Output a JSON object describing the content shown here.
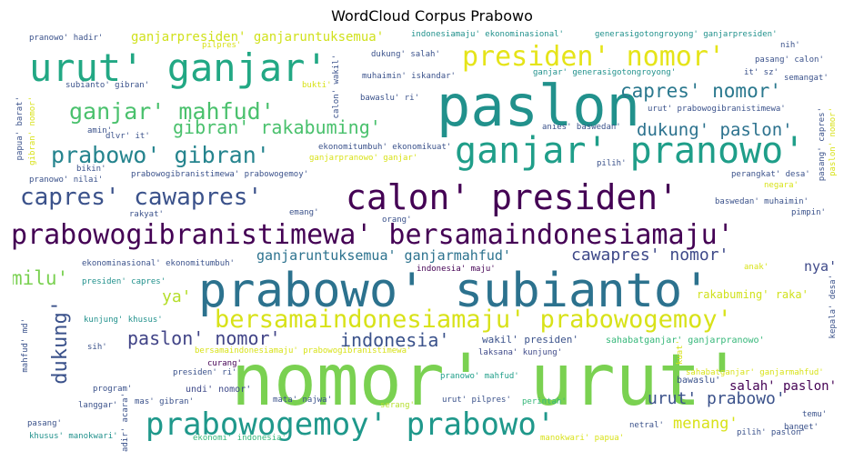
{
  "title": "WordCloud Corpus Prabowo",
  "palette": {
    "purple": "#440154",
    "indigo": "#3b528b",
    "blue": "#31688e",
    "teal": "#21918c",
    "green": "#35b779",
    "lime": "#6ece58",
    "yellow": "#d8e219",
    "darkblue": "#414487"
  },
  "words": [
    {
      "id": "nomor-urut",
      "text": "nomor' urut'",
      "color": "#7ad151"
    },
    {
      "id": "paslon",
      "text": "paslon",
      "color": "#21918c"
    },
    {
      "id": "prabowo-subianto",
      "text": "prabowo' subianto'",
      "color": "#2c728e"
    },
    {
      "id": "urut-ganjar",
      "text": "urut' ganjar'",
      "color": "#22a884"
    },
    {
      "id": "ganjar-pranowo",
      "text": "ganjar' pranowo'",
      "color": "#1f9e89"
    },
    {
      "id": "calon-presiden",
      "text": "calon' presiden'",
      "color": "#440154"
    },
    {
      "id": "prabowogibranistimewa-bersamaindonesiamaju",
      "text": "prabowogibranistimewa' bersamaindonesiamaju'",
      "color": "#440154"
    },
    {
      "id": "prabowogemoy-prabowo",
      "text": "prabowogemoy' prabowo'",
      "color": "#1f988b"
    },
    {
      "id": "bersamaindonesiamaju-prabowogemoy",
      "text": "bersamaindonesiamaju' prabowogemoy'",
      "color": "#d8e219"
    },
    {
      "id": "presiden-nomor",
      "text": "presiden' nomor'",
      "color": "#e5e419"
    },
    {
      "id": "capres-cawapres",
      "text": "capres' cawapres'",
      "color": "#3b528b"
    },
    {
      "id": "ganjar-mahfud",
      "text": "ganjar' mahfud'",
      "color": "#4ac16d"
    },
    {
      "id": "prabowo-gibran",
      "text": "prabowo' gibran'",
      "color": "#25848e"
    },
    {
      "id": "capres-nomor",
      "text": "capres' nomor'",
      "color": "#2a788e"
    },
    {
      "id": "gibran-rakabuming",
      "text": "gibran' rakabuming'",
      "color": "#4ac16d"
    },
    {
      "id": "dukung-paslon",
      "text": "dukung' paslon'",
      "color": "#2c728e"
    },
    {
      "id": "paslon-nomor",
      "text": "paslon' nomor'",
      "color": "#414487"
    },
    {
      "id": "indonesia",
      "text": "indonesia'",
      "color": "#3b528b"
    },
    {
      "id": "cawapres-nomor",
      "text": "cawapres' nomor'",
      "color": "#3e4989"
    },
    {
      "id": "ganjaruntuksemua-ganjarmahfud",
      "text": "ganjaruntuksemua' ganjarmahfud'",
      "color": "#2c728e"
    },
    {
      "id": "ganjarpresiden-ganjaruntuksemua",
      "text": "ganjarpresiden' ganjaruntuksemua'",
      "color": "#d0e11c"
    },
    {
      "id": "urut-prabowo",
      "text": "urut' prabowo'",
      "color": "#3b528b"
    },
    {
      "id": "menang",
      "text": "menang'",
      "color": "#d8e219"
    },
    {
      "id": "salah-paslon",
      "text": "salah' paslon'",
      "color": "#440154"
    },
    {
      "id": "milu",
      "text": "milu'",
      "color": "#7ad151"
    },
    {
      "id": "ya",
      "text": "ya'",
      "color": "#b5de2b"
    },
    {
      "id": "nya",
      "text": "nya'",
      "color": "#3e4989"
    },
    {
      "id": "dukung",
      "text": "dukung'",
      "color": "#3b528b"
    },
    {
      "id": "rakabuming-raka",
      "text": "rakabuming' raka'",
      "color": "#d0e11c"
    },
    {
      "id": "wakil-presiden",
      "text": "wakil' presiden'",
      "color": "#3b528b"
    },
    {
      "id": "sahabatganjar-ganjarpranowo",
      "text": "sahabatganjar' ganjarpranowo'",
      "color": "#35b779"
    },
    {
      "id": "laksana-kunjung",
      "text": "laksana' kunjung'",
      "color": "#3e4989"
    },
    {
      "id": "pranowo-mahfud",
      "text": "pranowo' mahfud'",
      "color": "#1f9e89"
    },
    {
      "id": "bawaslu",
      "text": "bawaslu'",
      "color": "#3b528b"
    },
    {
      "id": "sahabatganjar-ganjarmahfud",
      "text": "sahabatganjar' ganjarmahfud'",
      "color": "#d8e219"
    },
    {
      "id": "undi-nomor",
      "text": "undi' nomor'",
      "color": "#3e4989"
    },
    {
      "id": "curang",
      "text": "curang'",
      "color": "#440154"
    },
    {
      "id": "presiden-ri",
      "text": "presiden' ri'",
      "color": "#3b528b"
    },
    {
      "id": "program",
      "text": "program'",
      "color": "#3b528b"
    },
    {
      "id": "mas-gibran",
      "text": "mas' gibran'",
      "color": "#3b528b"
    },
    {
      "id": "langgar",
      "text": "langgar'",
      "color": "#3b528b"
    },
    {
      "id": "mata-najwa",
      "text": "mata' najwa'",
      "color": "#3b528b"
    },
    {
      "id": "serang",
      "text": "serang'",
      "color": "#b5de2b"
    },
    {
      "id": "urut-pilpres",
      "text": "urut' pilpres'",
      "color": "#3b528b"
    },
    {
      "id": "perintah",
      "text": "perintah'",
      "color": "#35b779"
    },
    {
      "id": "netral",
      "text": "netral'",
      "color": "#3b528b"
    },
    {
      "id": "pilih-paslon",
      "text": "pilih' paslon'",
      "color": "#3b528b"
    },
    {
      "id": "temu",
      "text": "temu'",
      "color": "#3b528b"
    },
    {
      "id": "banget",
      "text": "banget'",
      "color": "#3b528b"
    },
    {
      "id": "manokwari-papua",
      "text": "manokwari' papua'",
      "color": "#d8e219"
    },
    {
      "id": "ekonomi-indonesia",
      "text": "ekonomi' indonesia'",
      "color": "#35b779"
    },
    {
      "id": "khusus-manokwari",
      "text": "khusus' manokwari'",
      "color": "#21918c"
    },
    {
      "id": "pasang-bottom",
      "text": "pasang'",
      "color": "#3b528b"
    },
    {
      "id": "sih",
      "text": "sih'",
      "color": "#3b528b"
    },
    {
      "id": "kunjung-khusus",
      "text": "kunjung' khusus'",
      "color": "#21918c"
    },
    {
      "id": "bersamaindonesiamaju-prabowogibranistimewa",
      "text": "bersamaindonesiamaju' prabowogibranistimewa'",
      "color": "#d8e219"
    },
    {
      "id": "presiden-capres",
      "text": "presiden' capres'",
      "color": "#21918c"
    },
    {
      "id": "ekonominasional-ekonomitumbuh",
      "text": "ekonominasional' ekonomitumbuh'",
      "color": "#3b528b"
    },
    {
      "id": "indonesia-maju",
      "text": "indonesia' maju'",
      "color": "#440154"
    },
    {
      "id": "orang",
      "text": "orang'",
      "color": "#3b528b"
    },
    {
      "id": "emang",
      "text": "emang'",
      "color": "#3b528b"
    },
    {
      "id": "rakyat",
      "text": "rakyat'",
      "color": "#3b528b"
    },
    {
      "id": "amin",
      "text": "amin'",
      "color": "#3b528b"
    },
    {
      "id": "dlvr-it",
      "text": "dlvr' it'",
      "color": "#3b528b"
    },
    {
      "id": "bikin",
      "text": "bikin'",
      "color": "#3b528b"
    },
    {
      "id": "pranowo-nilai",
      "text": "pranowo' nilai'",
      "color": "#3b528b"
    },
    {
      "id": "prabowogibranistimewa-prabowogemoy",
      "text": "prabowogibranistimewa' prabowogemoy'",
      "color": "#3b528b"
    },
    {
      "id": "ekonomitumbuh-ekonomikuat",
      "text": "ekonomitumbuh' ekonomikuat'",
      "color": "#3b528b"
    },
    {
      "id": "ganjarpranowo-ganjar",
      "text": "ganjarpranowo' ganjar'",
      "color": "#d8e219"
    },
    {
      "id": "anies-baswedan",
      "text": "anies' baswedan'",
      "color": "#3b528b"
    },
    {
      "id": "pilih",
      "text": "pilih'",
      "color": "#3b528b"
    },
    {
      "id": "perangkat-desa",
      "text": "perangkat' desa'",
      "color": "#3b528b"
    },
    {
      "id": "negara",
      "text": "negara'",
      "color": "#d8e219"
    },
    {
      "id": "baswedan-muhaimin",
      "text": "baswedan' muhaimin'",
      "color": "#3b528b"
    },
    {
      "id": "pimpin",
      "text": "pimpin'",
      "color": "#3b528b"
    },
    {
      "id": "anak",
      "text": "anak'",
      "color": "#d8e219"
    },
    {
      "id": "bawaslu-ri",
      "text": "bawaslu' ri'",
      "color": "#3b528b"
    },
    {
      "id": "muhaimin-iskandar",
      "text": "muhaimin' iskandar'",
      "color": "#3b528b"
    },
    {
      "id": "dukung-salah",
      "text": "dukung' salah'",
      "color": "#3b528b"
    },
    {
      "id": "indonesiamaju-ekonominasional",
      "text": "indonesiamaju' ekonominasional'",
      "color": "#21918c"
    },
    {
      "id": "generasigotongroyong-ganjarpresiden",
      "text": "generasigotongroyong' ganjarpresiden'",
      "color": "#21918c"
    },
    {
      "id": "ganjar-generasigotongroyong",
      "text": "ganjar' generasigotongroyong'",
      "color": "#21918c"
    },
    {
      "id": "urut-prabowogibranistimewa",
      "text": "urut' prabowogibranistimewa'",
      "color": "#3b528b"
    },
    {
      "id": "nih",
      "text": "nih'",
      "color": "#3b528b"
    },
    {
      "id": "pasang-calon",
      "text": "pasang' calon'",
      "color": "#3b528b"
    },
    {
      "id": "it-sz",
      "text": "it' sz'",
      "color": "#3b528b"
    },
    {
      "id": "semangat",
      "text": "semangat'",
      "color": "#3b528b"
    },
    {
      "id": "pranowo-hadir",
      "text": "pranowo' hadir'",
      "color": "#3b528b"
    },
    {
      "id": "pilpres",
      "text": "pilpres'",
      "color": "#d8e219"
    },
    {
      "id": "subianto-gibran",
      "text": "subianto' gibran'",
      "color": "#3b528b"
    },
    {
      "id": "bukti",
      "text": "bukti'",
      "color": "#d8e219"
    },
    {
      "id": "papua-barat",
      "text": "papua' barat'",
      "color": "#3b528b"
    },
    {
      "id": "gibran-nomor",
      "text": "gibran' nomor'",
      "color": "#d8e219"
    },
    {
      "id": "calon-wakil",
      "text": "calon' wakil'",
      "color": "#3b528b"
    },
    {
      "id": "pasang-capres",
      "text": "pasang' capres'",
      "color": "#3b528b"
    },
    {
      "id": "paslon-nomor-v",
      "text": "paslon' nomor'",
      "color": "#d8e219"
    },
    {
      "id": "kepala-desa",
      "text": "kepala' desa'",
      "color": "#3b528b"
    },
    {
      "id": "mahfud-md",
      "text": "mahfud' md'",
      "color": "#3b528b"
    },
    {
      "id": "hadir-acara",
      "text": "hadir' acara'",
      "color": "#3b528b"
    },
    {
      "id": "kuat",
      "text": "kuat'",
      "color": "#d8e219"
    }
  ]
}
